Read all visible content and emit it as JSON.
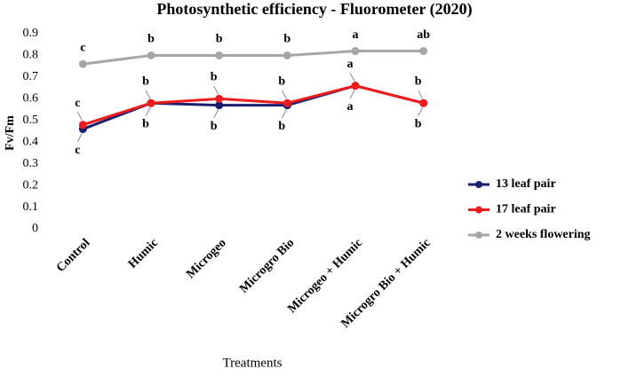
{
  "chart_data": {
    "type": "line",
    "title": "Photosynthetic efficiency - Fluorometer (2020)",
    "y_label": "Fv/Fm",
    "x_label": "Treatments",
    "categories": [
      "Control",
      "Humic",
      "Microgeo",
      "Microgro Bio",
      "Microgeo + Humic",
      "Microgro Bio + Humic"
    ],
    "series": [
      {
        "name": "13 leaf pair",
        "color": "#1a1f6e",
        "values": [
          0.46,
          0.58,
          0.57,
          0.57,
          0.66,
          0.58
        ],
        "letters": [
          "c",
          "b",
          "b",
          "b",
          "a",
          "b"
        ]
      },
      {
        "name": "17 leaf pair",
        "color": "#ee1c1c",
        "values": [
          0.48,
          0.58,
          0.6,
          0.58,
          0.66,
          0.58
        ],
        "letters": [
          "c",
          "b",
          "b",
          "b",
          "a",
          "b"
        ]
      },
      {
        "name": "2 weeks flowering",
        "color": "#a6a6a6",
        "values": [
          0.76,
          0.8,
          0.8,
          0.8,
          0.82,
          0.82
        ],
        "letters": [
          "c",
          "b",
          "b",
          "b",
          "a",
          "ab"
        ]
      }
    ],
    "ylim": [
      0,
      0.9
    ],
    "yticks": [
      0,
      0.1,
      0.2,
      0.3,
      0.4,
      0.5,
      0.6,
      0.7,
      0.8,
      0.9
    ],
    "grid": false,
    "legend": "right"
  }
}
